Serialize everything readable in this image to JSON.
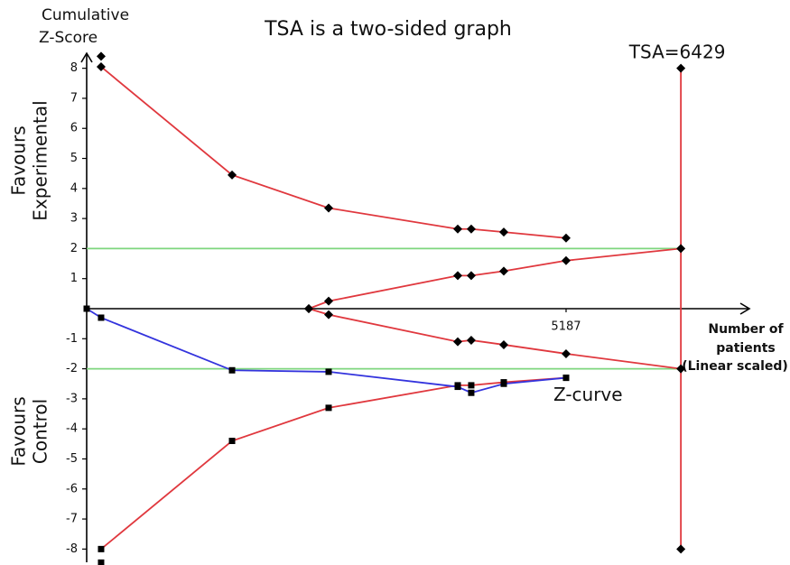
{
  "chart_data": {
    "type": "line",
    "title": "TSA is a two-sided graph",
    "y_label": [
      "Cumulative",
      "Z-Score"
    ],
    "upper_label": [
      "Favours",
      "Experimental"
    ],
    "lower_label": [
      "Favours",
      "Control"
    ],
    "x_label": [
      "Number of",
      "patients",
      "(Linear scaled)"
    ],
    "annotations": [
      {
        "text": "TSA=6429",
        "x": 6429,
        "y": 8.5,
        "color": "#e0202a"
      },
      {
        "text": "Z-curve",
        "x": 5187,
        "y": -2.9,
        "color": "#2a2ae0"
      }
    ],
    "xlim": [
      0,
      7180
    ],
    "ylim": [
      -8.5,
      8.5
    ],
    "xticks": [
      5187
    ],
    "yticks": [
      -8,
      -7,
      -6,
      -5,
      -4,
      -3,
      -2,
      -1,
      1,
      2,
      3,
      4,
      5,
      6,
      7,
      8
    ],
    "marker_color": "#000000",
    "series": [
      {
        "color": "#7ed67e",
        "marker": null,
        "line": true,
        "x": [
          0,
          6429
        ],
        "values": [
          2,
          2
        ]
      },
      {
        "color": "#7ed67e",
        "marker": null,
        "line": true,
        "x": [
          0,
          6429
        ],
        "values": [
          -2,
          -2
        ]
      },
      {
        "color": "#e0383e",
        "marker": "diamond",
        "line": true,
        "x": [
          156,
          1573,
          2618,
          4015,
          4161,
          4513,
          5187
        ],
        "values": [
          8.05,
          4.45,
          3.35,
          2.65,
          2.65,
          2.55,
          2.35
        ]
      },
      {
        "color": "#e0383e",
        "marker": "diamond",
        "line": true,
        "x": [
          2403,
          2618,
          4015,
          4161,
          4513,
          5187,
          6429
        ],
        "values": [
          0,
          0.25,
          1.1,
          1.1,
          1.25,
          1.6,
          2
        ]
      },
      {
        "color": "#e0383e",
        "marker": "diamond",
        "line": true,
        "x": [
          2403,
          2618,
          4015,
          4161,
          4513,
          5187,
          6429
        ],
        "values": [
          0,
          -0.2,
          -1.1,
          -1.05,
          -1.2,
          -1.5,
          -2
        ]
      },
      {
        "color": "#e0383e",
        "marker": "square",
        "line": true,
        "x": [
          156,
          1573,
          2618,
          4015,
          4161,
          4513,
          5187
        ],
        "values": [
          -8,
          -4.4,
          -3.3,
          -2.55,
          -2.55,
          -2.45,
          -2.3
        ]
      },
      {
        "color": "#e0383e",
        "marker": "diamond",
        "line": true,
        "x": [
          6429,
          6429
        ],
        "values": [
          8,
          -8
        ]
      },
      {
        "color": "#3333dd",
        "marker": "square",
        "line": true,
        "x": [
          0,
          156,
          1573,
          2618,
          4015,
          4161,
          4513,
          5187
        ],
        "values": [
          0,
          -0.3,
          -2.05,
          -2.1,
          -2.6,
          -2.8,
          -2.5,
          -2.3
        ]
      },
      {
        "color": "#000000",
        "marker": "diamond",
        "line": false,
        "x": [
          156
        ],
        "values": [
          8.4
        ]
      },
      {
        "color": "#000000",
        "marker": "square",
        "line": false,
        "x": [
          156
        ],
        "values": [
          -8.45
        ]
      }
    ]
  }
}
